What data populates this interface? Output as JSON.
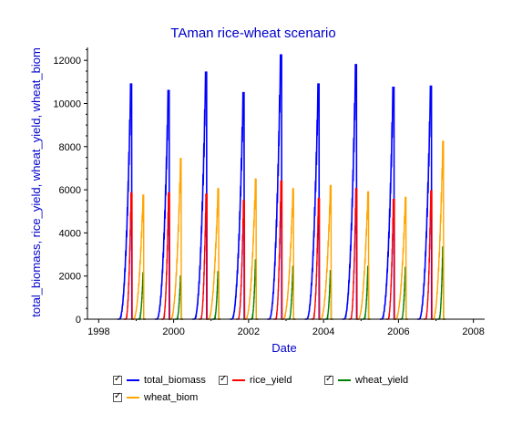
{
  "chart_data": {
    "type": "line",
    "title": "TAman rice-wheat scenario",
    "xlabel": "Date",
    "ylabel": "total_biomass, rice_yield, wheat_yield, wheat_biom",
    "xlim": [
      1997.7,
      2008.3
    ],
    "ylim": [
      0,
      12600
    ],
    "xticks": [
      1998,
      2000,
      2002,
      2004,
      2006,
      2008
    ],
    "xtick_labels": [
      "1998",
      "2000",
      "2002",
      "2004",
      "2006",
      "2008"
    ],
    "yticks": [
      0,
      2000,
      4000,
      6000,
      8000,
      10000,
      12000
    ],
    "ytick_labels": [
      "0",
      "2000",
      "4000",
      "6000",
      "8000",
      "10000",
      "12000"
    ],
    "grid": false,
    "legend_position": "bottom",
    "series": [
      {
        "name": "total_biomass",
        "color": "#0000ff",
        "cycles": [
          {
            "start": 1998.55,
            "peak_x": 1998.85,
            "peak": 10900,
            "end": 1998.88
          },
          {
            "start": 1999.55,
            "peak_x": 1999.85,
            "peak": 10600,
            "end": 1999.88
          },
          {
            "start": 2000.55,
            "peak_x": 2000.85,
            "peak": 11450,
            "end": 2000.88
          },
          {
            "start": 2001.55,
            "peak_x": 2001.85,
            "peak": 10500,
            "end": 2001.88
          },
          {
            "start": 2002.55,
            "peak_x": 2002.85,
            "peak": 12250,
            "end": 2002.88
          },
          {
            "start": 2003.55,
            "peak_x": 2003.85,
            "peak": 10900,
            "end": 2003.88
          },
          {
            "start": 2004.55,
            "peak_x": 2004.85,
            "peak": 11800,
            "end": 2004.88
          },
          {
            "start": 2005.55,
            "peak_x": 2005.85,
            "peak": 10750,
            "end": 2005.88
          },
          {
            "start": 2006.55,
            "peak_x": 2006.85,
            "peak": 10800,
            "end": 2006.88
          }
        ]
      },
      {
        "name": "rice_yield",
        "color": "#ff0000",
        "cycles": [
          {
            "start": 1998.72,
            "peak_x": 1998.86,
            "peak": 5850,
            "end": 1998.89
          },
          {
            "start": 1999.72,
            "peak_x": 1999.86,
            "peak": 5850,
            "end": 1999.89
          },
          {
            "start": 2000.72,
            "peak_x": 2000.86,
            "peak": 5800,
            "end": 2000.89
          },
          {
            "start": 2001.72,
            "peak_x": 2001.86,
            "peak": 5500,
            "end": 2001.89
          },
          {
            "start": 2002.72,
            "peak_x": 2002.86,
            "peak": 6400,
            "end": 2002.89
          },
          {
            "start": 2003.72,
            "peak_x": 2003.86,
            "peak": 5600,
            "end": 2003.89
          },
          {
            "start": 2004.72,
            "peak_x": 2004.86,
            "peak": 6050,
            "end": 2004.89
          },
          {
            "start": 2005.72,
            "peak_x": 2005.86,
            "peak": 5550,
            "end": 2005.89
          },
          {
            "start": 2006.72,
            "peak_x": 2006.86,
            "peak": 5950,
            "end": 2006.89
          }
        ]
      },
      {
        "name": "wheat_yield",
        "color": "#008000",
        "cycles": [
          {
            "start": 1999.08,
            "peak_x": 1999.18,
            "peak": 2150,
            "end": 1999.2
          },
          {
            "start": 2000.08,
            "peak_x": 2000.18,
            "peak": 2000,
            "end": 2000.2
          },
          {
            "start": 2001.08,
            "peak_x": 2001.18,
            "peak": 2200,
            "end": 2001.2
          },
          {
            "start": 2002.08,
            "peak_x": 2002.18,
            "peak": 2750,
            "end": 2002.2
          },
          {
            "start": 2003.08,
            "peak_x": 2003.18,
            "peak": 2450,
            "end": 2003.2
          },
          {
            "start": 2004.08,
            "peak_x": 2004.18,
            "peak": 2250,
            "end": 2004.2
          },
          {
            "start": 2005.08,
            "peak_x": 2005.18,
            "peak": 2450,
            "end": 2005.2
          },
          {
            "start": 2006.08,
            "peak_x": 2006.18,
            "peak": 2400,
            "end": 2006.2
          },
          {
            "start": 2007.08,
            "peak_x": 2007.18,
            "peak": 3350,
            "end": 2007.2
          }
        ]
      },
      {
        "name": "wheat_biom",
        "color": "#ffa500",
        "cycles": [
          {
            "start": 1998.92,
            "peak_x": 1999.18,
            "peak": 5750,
            "end": 1999.2
          },
          {
            "start": 1999.92,
            "peak_x": 2000.18,
            "peak": 7450,
            "end": 2000.2
          },
          {
            "start": 2000.92,
            "peak_x": 2001.18,
            "peak": 6050,
            "end": 2001.2
          },
          {
            "start": 2001.92,
            "peak_x": 2002.18,
            "peak": 6500,
            "end": 2002.2
          },
          {
            "start": 2002.92,
            "peak_x": 2003.18,
            "peak": 6050,
            "end": 2003.2
          },
          {
            "start": 2003.92,
            "peak_x": 2004.18,
            "peak": 6200,
            "end": 2004.2
          },
          {
            "start": 2004.92,
            "peak_x": 2005.18,
            "peak": 5900,
            "end": 2005.2
          },
          {
            "start": 2005.92,
            "peak_x": 2006.18,
            "peak": 5650,
            "end": 2006.2
          },
          {
            "start": 2006.92,
            "peak_x": 2007.18,
            "peak": 8250,
            "end": 2007.2
          }
        ]
      }
    ]
  },
  "legend": {
    "items": [
      {
        "label": "total_biomass",
        "checked": true,
        "color": "#0000ff"
      },
      {
        "label": "rice_yield",
        "checked": true,
        "color": "#ff0000"
      },
      {
        "label": "wheat_yield",
        "checked": true,
        "color": "#008000"
      },
      {
        "label": "wheat_biom",
        "checked": true,
        "color": "#ffa500"
      }
    ]
  }
}
